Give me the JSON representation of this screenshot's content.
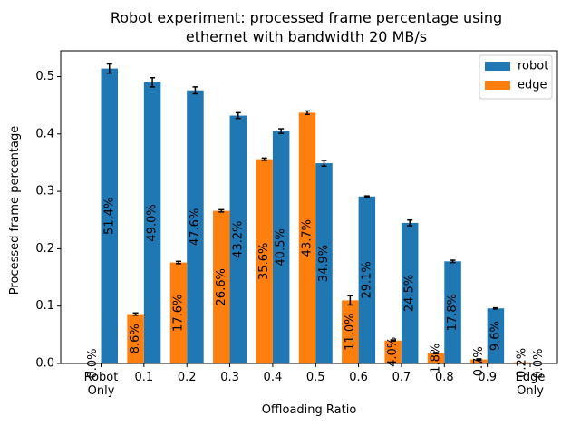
{
  "chart_data": {
    "type": "bar",
    "title_line1": "Robot experiment: processed frame percentage using",
    "title_line2": "ethernet with bandwidth 20 MB/s",
    "xlabel": "Offloading Ratio",
    "ylabel": "Processed frame percentage",
    "ylim": [
      0,
      0.545
    ],
    "yticks": [
      "0.0",
      "0.1",
      "0.2",
      "0.3",
      "0.4",
      "0.5"
    ],
    "ytick_values": [
      0,
      0.1,
      0.2,
      0.3,
      0.4,
      0.5
    ],
    "categories": [
      [
        "Robot",
        "Only"
      ],
      [
        "0.1"
      ],
      [
        "0.2"
      ],
      [
        "0.3"
      ],
      [
        "0.4"
      ],
      [
        "0.5"
      ],
      [
        "0.6"
      ],
      [
        "0.7"
      ],
      [
        "0.8"
      ],
      [
        "0.9"
      ],
      [
        "Edge",
        "Only"
      ]
    ],
    "legend_position": "top-right",
    "series": [
      {
        "name": "robot",
        "color": "#1f77b4",
        "values": [
          0.514,
          0.49,
          0.476,
          0.432,
          0.405,
          0.349,
          0.291,
          0.245,
          0.178,
          0.096,
          0.0
        ],
        "errors": [
          0.008,
          0.008,
          0.006,
          0.005,
          0.004,
          0.005,
          0.001,
          0.005,
          0.002,
          0.001,
          0.0
        ],
        "labels": [
          "51.4%",
          "49.0%",
          "47.6%",
          "43.2%",
          "40.5%",
          "34.9%",
          "29.1%",
          "24.5%",
          "17.8%",
          "9.6%",
          "0.0%"
        ]
      },
      {
        "name": "edge",
        "color": "#ff7f0e",
        "values": [
          0.0,
          0.086,
          0.176,
          0.266,
          0.356,
          0.437,
          0.11,
          0.04,
          0.018,
          0.007,
          0.002
        ],
        "errors": [
          0.0,
          0.002,
          0.002,
          0.002,
          0.002,
          0.003,
          0.008,
          0.001,
          0.001,
          0.001,
          0.0
        ],
        "labels": [
          "0.0%",
          "8.6%",
          "17.6%",
          "26.6%",
          "35.6%",
          "43.7%",
          "11.0%",
          "4.0%",
          "1.8%",
          "0.7%",
          "0.2%"
        ]
      }
    ]
  }
}
